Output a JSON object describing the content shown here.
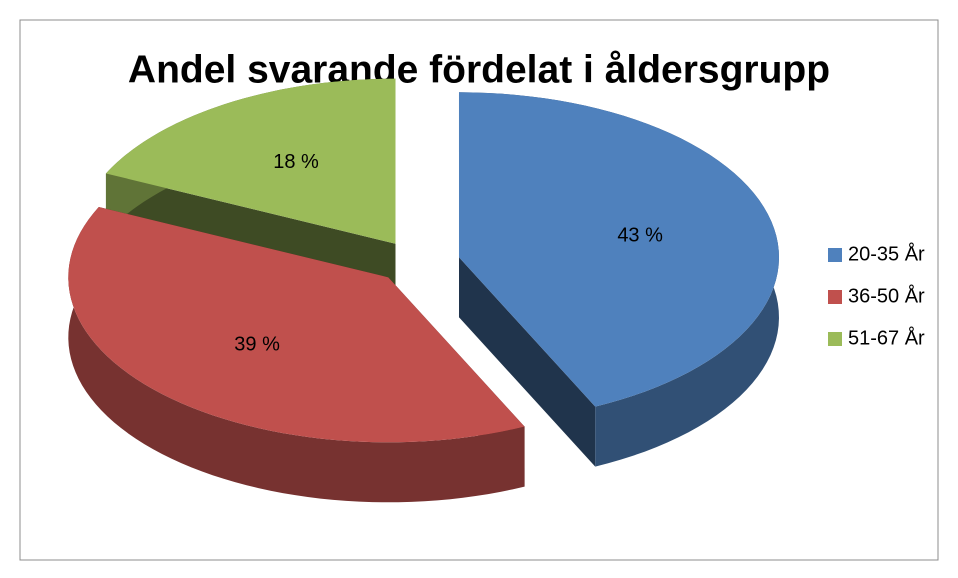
{
  "chart_data": {
    "type": "pie",
    "title": "Andel svarande fördelat i åldersgrupp",
    "categories": [
      "20-35 År",
      "36-50 År",
      "51-67 År"
    ],
    "values": [
      43,
      39,
      18
    ],
    "value_labels": [
      "43 %",
      "39 %",
      "18 %"
    ],
    "colors": [
      "#4f81bd",
      "#c0504d",
      "#9bbb59"
    ],
    "legend": "right"
  }
}
